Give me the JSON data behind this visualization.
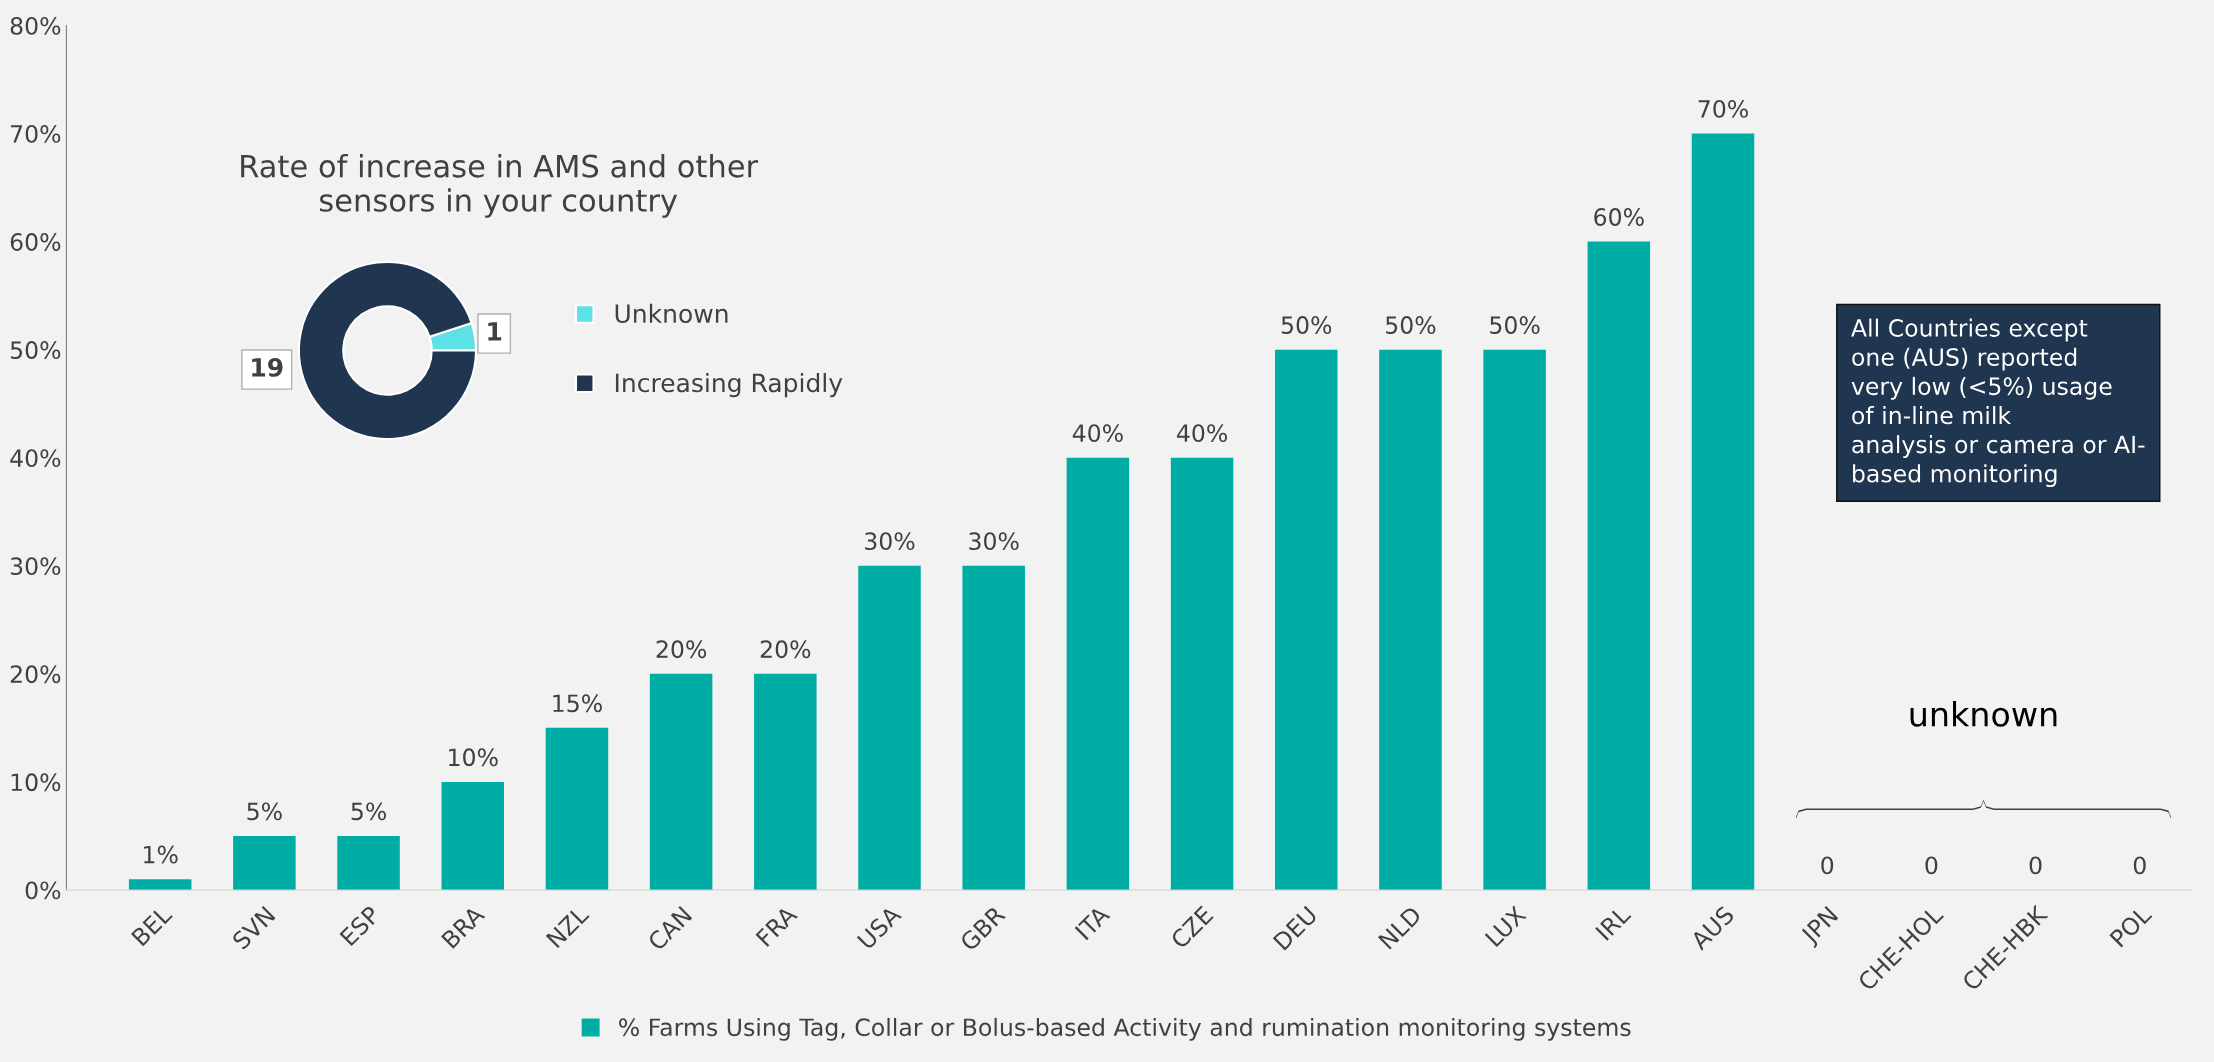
{
  "chart_data": [
    {
      "type": "bar",
      "categories": [
        "BEL",
        "SVN",
        "ESP",
        "BRA",
        "NZL",
        "CAN",
        "FRA",
        "USA",
        "GBR",
        "ITA",
        "CZE",
        "DEU",
        "NLD",
        "LUX",
        "IRL",
        "AUS",
        "JPN",
        "CHE-HOL",
        "CHE-HBK",
        "POL"
      ],
      "series": [
        {
          "name": "% Farms Using Tag, Collar or Bolus-based Activity and rumination monitoring systems",
          "color": "#00ada5",
          "values": [
            1,
            5,
            5,
            10,
            15,
            20,
            20,
            30,
            30,
            40,
            40,
            50,
            50,
            50,
            60,
            70,
            0,
            0,
            0,
            0
          ]
        }
      ],
      "value_labels": [
        "1%",
        "5%",
        "5%",
        "10%",
        "15%",
        "20%",
        "20%",
        "30%",
        "30%",
        "40%",
        "40%",
        "50%",
        "50%",
        "50%",
        "60%",
        "70%",
        "0",
        "0",
        "0",
        "0"
      ],
      "ylim": [
        0,
        80
      ],
      "yticks": [
        {
          "value": 0,
          "label": "0%"
        },
        {
          "value": 10,
          "label": "10%"
        },
        {
          "value": 20,
          "label": "20%"
        },
        {
          "value": 30,
          "label": "30%"
        },
        {
          "value": 40,
          "label": "40%"
        },
        {
          "value": 50,
          "label": "50%"
        },
        {
          "value": 60,
          "label": "60%"
        },
        {
          "value": 70,
          "label": "70%"
        },
        {
          "value": 80,
          "label": "80%"
        }
      ],
      "grid": false,
      "legend": "bottom",
      "annotations": [
        "All Countries except\none (AUS) reported\nvery low (<5%) usage\nof in-line milk\nanalysis or camera or AI-\nbased monitoring",
        "unknown"
      ]
    },
    {
      "type": "donut",
      "title": "Rate of increase in AMS and other\nsensors in your country",
      "categories": [
        "Unknown",
        "Increasing Rapidly"
      ],
      "values": [
        1,
        19
      ],
      "colors": [
        "#5ce1e6",
        "#203550"
      ],
      "data_labels": true,
      "legend": "right"
    }
  ]
}
